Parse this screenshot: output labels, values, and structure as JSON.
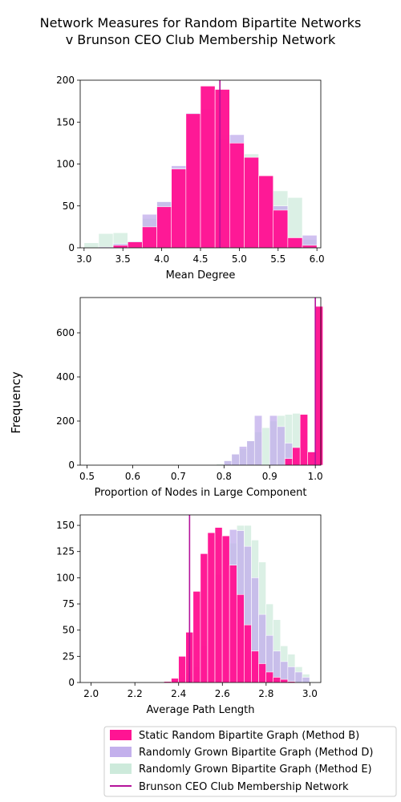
{
  "figure": {
    "title_line1": "Network Measures for Random Bipartite Networks",
    "title_line2": "v Brunson CEO Club Membership Network",
    "ylabel": "Frequency"
  },
  "legend": {
    "placement": "bottom-right",
    "entries": [
      {
        "label": "Static Random Bipartite Graph (Method B)",
        "color": "#ff1493"
      },
      {
        "label": "Randomly Grown Bipartite Graph (Method D)",
        "color": "#c3b0ec"
      },
      {
        "label": "Randomly Grown Bipartite Graph (Method E)",
        "color": "#cdeadb"
      },
      {
        "label": "Brunson CEO Club Membership Network",
        "color": "#b5139b"
      }
    ]
  },
  "chart_data": [
    {
      "type": "bar",
      "xlabel": "Mean Degree",
      "xlim": [
        2.95,
        6.05
      ],
      "ylim": [
        0,
        200
      ],
      "xticks": [
        "3.0",
        "3.5",
        "4.0",
        "4.5",
        "5.0",
        "5.5",
        "6.0"
      ],
      "yticks": [
        "0",
        "50",
        "100",
        "150",
        "200"
      ],
      "grid": false,
      "reference_line": 4.75,
      "bin_start": 3.0,
      "bin_width": 0.1875,
      "series": [
        {
          "name": "Static Random Bipartite Graph (Method B)",
          "values": [
            0,
            0,
            3,
            7,
            25,
            49,
            94,
            160,
            193,
            189,
            125,
            108,
            86,
            45,
            12,
            3
          ]
        },
        {
          "name": "Randomly Grown Bipartite Graph (Method D)",
          "values": [
            0,
            1,
            5,
            8,
            40,
            55,
            98,
            161,
            166,
            130,
            135,
            108,
            84,
            50,
            12,
            15
          ]
        },
        {
          "name": "Randomly Grown Bipartite Graph (Method E)",
          "values": [
            6,
            17,
            18,
            7,
            35,
            55,
            92,
            88,
            130,
            135,
            95,
            112,
            68,
            68,
            60,
            10
          ]
        }
      ]
    },
    {
      "type": "bar",
      "xlabel": "Proportion of Nodes in Large Component",
      "xlim": [
        0.485,
        1.012
      ],
      "ylim": [
        0,
        760
      ],
      "xticks": [
        "0.5",
        "0.6",
        "0.7",
        "0.8",
        "0.9",
        "1.0"
      ],
      "yticks": [
        "0",
        "200",
        "400",
        "600"
      ],
      "grid": false,
      "reference_line": 1.0,
      "bin_start": 0.5,
      "bin_width": 0.0167,
      "series": [
        {
          "name": "Static Random Bipartite Graph (Method B)",
          "values": [
            0,
            0,
            0,
            0,
            0,
            0,
            0,
            0,
            0,
            0,
            0,
            0,
            0,
            0,
            0,
            0,
            0,
            0,
            0,
            0,
            0,
            0,
            0,
            0,
            0,
            0,
            0,
            0,
            0,
            0,
            0,
            0,
            0,
            0,
            0,
            0,
            0,
            0,
            0,
            0,
            0,
            0,
            0,
            0,
            0,
            0,
            0,
            0,
            0,
            0,
            0,
            0,
            0,
            0,
            0,
            0,
            0,
            0,
            0,
            0,
            0,
            0,
            0,
            0,
            0,
            0,
            0,
            0,
            0,
            0,
            0,
            0,
            0,
            0,
            0,
            0,
            0,
            0,
            0,
            0,
            0,
            0,
            0,
            0,
            0,
            0,
            0,
            0,
            0,
            0,
            0,
            0,
            0,
            0,
            0,
            0,
            0,
            0,
            0,
            0,
            0,
            0,
            0,
            0,
            0,
            0,
            0,
            0,
            0,
            0,
            0,
            0,
            0,
            0,
            0,
            0,
            0,
            0,
            0,
            0,
            0,
            0,
            0,
            0,
            0,
            0,
            0,
            0,
            0,
            0,
            0,
            0,
            0,
            0,
            0,
            0,
            0,
            0,
            0,
            0,
            0,
            0,
            0,
            0,
            0,
            0,
            0,
            0,
            0,
            0
          ]
        }
      ]
    }
  ]
}
